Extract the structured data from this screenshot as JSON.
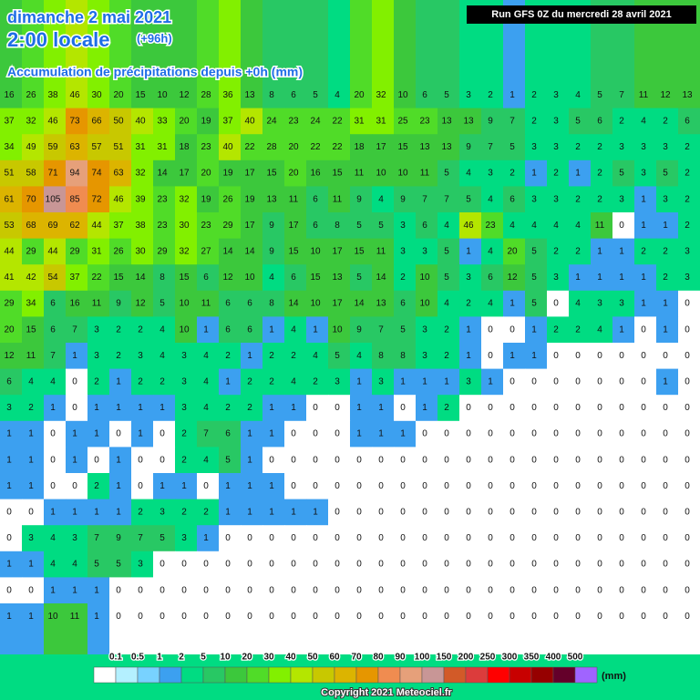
{
  "header": {
    "date": "dimanche 2 mai 2021",
    "time": "2:00 locale",
    "lead": "(+96h)",
    "subtitle": "Accumulation de précipitations depuis +0h (mm)",
    "run": "Run GFS 0Z du mercredi 28 avril 2021"
  },
  "legend": {
    "labels": [
      0.1,
      0.5,
      1,
      2,
      5,
      10,
      20,
      30,
      40,
      50,
      60,
      70,
      80,
      90,
      100,
      150,
      200,
      250,
      300,
      350,
      400,
      500
    ],
    "colors": [
      "#ffffff",
      "#b4f0ff",
      "#78d2ff",
      "#3ca0f0",
      "#00dc82",
      "#28c864",
      "#3cc83c",
      "#50dc28",
      "#82f000",
      "#b4e600",
      "#c8c800",
      "#dcb400",
      "#e69600",
      "#f08c50",
      "#e6a07a",
      "#c89696",
      "#d25a28",
      "#dc3c3c",
      "#ff0000",
      "#c80000",
      "#960000",
      "#64002a",
      "#a064ff"
    ],
    "unit": "(mm)"
  },
  "copyright": "Copyright 2021 Meteociel.fr",
  "grid": {
    "rows": [
      [
        16,
        26,
        38,
        46,
        30,
        20,
        15,
        10,
        12,
        28,
        36,
        13,
        8,
        6,
        5,
        4,
        20,
        32,
        10,
        6,
        5,
        3,
        2,
        1,
        2,
        3,
        4,
        5,
        7,
        11,
        12,
        13
      ],
      [
        37,
        32,
        46,
        73,
        66,
        50,
        40,
        33,
        20,
        19,
        37,
        40,
        24,
        23,
        24,
        22,
        31,
        31,
        25,
        23,
        13,
        13,
        9,
        7,
        2,
        3,
        5,
        6,
        2,
        4,
        2,
        6
      ],
      [
        34,
        49,
        59,
        63,
        57,
        51,
        31,
        31,
        18,
        23,
        40,
        22,
        28,
        20,
        22,
        22,
        18,
        17,
        15,
        13,
        13,
        9,
        7,
        5,
        3,
        3,
        2,
        2,
        3,
        3,
        3,
        2
      ],
      [
        51,
        58,
        71,
        94,
        74,
        63,
        32,
        14,
        17,
        20,
        19,
        17,
        15,
        20,
        16,
        15,
        11,
        10,
        10,
        11,
        5,
        4,
        3,
        2,
        1,
        2,
        1,
        2,
        5,
        3,
        5,
        2
      ],
      [
        61,
        70,
        105,
        85,
        72,
        46,
        39,
        23,
        32,
        19,
        26,
        19,
        13,
        11,
        6,
        11,
        9,
        4,
        9,
        7,
        7,
        5,
        4,
        6,
        3,
        3,
        2,
        2,
        3,
        1,
        3,
        2
      ],
      [
        53,
        68,
        69,
        62,
        44,
        37,
        38,
        23,
        30,
        23,
        29,
        17,
        9,
        17,
        6,
        8,
        5,
        5,
        3,
        6,
        4,
        46,
        23,
        4,
        4,
        4,
        4,
        11,
        0,
        1,
        1,
        2
      ],
      [
        44,
        29,
        44,
        29,
        31,
        26,
        30,
        29,
        32,
        27,
        14,
        14,
        9,
        15,
        10,
        17,
        15,
        11,
        3,
        3,
        5,
        1,
        4,
        20,
        5,
        2,
        2,
        1,
        1,
        2,
        2,
        3
      ],
      [
        41,
        42,
        54,
        37,
        22,
        15,
        14,
        8,
        15,
        6,
        12,
        10,
        4,
        6,
        15,
        13,
        5,
        14,
        2,
        10,
        5,
        3,
        6,
        12,
        5,
        3,
        1,
        1,
        1,
        1,
        2,
        3
      ],
      [
        29,
        34,
        6,
        16,
        11,
        9,
        12,
        5,
        10,
        11,
        6,
        6,
        8,
        14,
        10,
        17,
        14,
        13,
        6,
        10,
        4,
        2,
        4,
        1,
        5,
        0,
        4,
        3,
        3,
        1,
        1,
        0
      ],
      [
        20,
        15,
        6,
        7,
        3,
        2,
        2,
        4,
        10,
        1,
        6,
        6,
        1,
        4,
        1,
        10,
        9,
        7,
        5,
        3,
        2,
        1,
        0,
        0,
        1,
        2,
        2,
        4,
        1,
        0,
        1,
        0
      ],
      [
        12,
        11,
        7,
        1,
        3,
        2,
        3,
        4,
        3,
        4,
        2,
        1,
        2,
        2,
        4,
        5,
        4,
        8,
        8,
        3,
        2,
        1,
        0,
        1,
        1,
        0,
        0,
        0,
        0,
        0,
        0,
        0
      ],
      [
        6,
        4,
        4,
        0,
        2,
        1,
        2,
        2,
        3,
        4,
        1,
        2,
        2,
        4,
        2,
        3,
        1,
        3,
        1,
        1,
        1,
        3,
        1,
        0,
        0,
        0,
        0,
        0,
        0,
        0,
        1,
        0
      ],
      [
        3,
        2,
        1,
        0,
        1,
        1,
        1,
        1,
        3,
        4,
        2,
        2,
        1,
        1,
        0,
        0,
        1,
        1,
        0,
        1,
        2,
        0,
        0,
        0,
        0,
        0,
        0,
        0,
        0,
        0,
        0,
        0
      ],
      [
        1,
        1,
        0,
        1,
        1,
        0,
        1,
        0,
        2,
        7,
        6,
        1,
        1,
        0,
        0,
        0,
        1,
        1,
        1,
        0,
        0,
        0,
        0,
        0,
        0,
        0,
        0,
        0,
        0,
        0,
        0,
        0
      ],
      [
        1,
        1,
        0,
        1,
        0,
        1,
        0,
        0,
        2,
        4,
        5,
        1,
        0,
        0,
        0,
        0,
        0,
        0,
        0,
        0,
        0,
        0,
        0,
        0,
        0,
        0,
        0,
        0,
        0,
        0,
        0,
        0
      ],
      [
        1,
        1,
        0,
        0,
        2,
        1,
        0,
        1,
        1,
        0,
        1,
        1,
        1,
        0,
        0,
        0,
        0,
        0,
        0,
        0,
        0,
        0,
        0,
        0,
        0,
        0,
        0,
        0,
        0,
        0,
        0,
        0
      ],
      [
        0,
        0,
        1,
        1,
        1,
        1,
        2,
        3,
        2,
        2,
        1,
        1,
        1,
        1,
        1,
        0,
        0,
        0,
        0,
        0,
        0,
        0,
        0,
        0,
        0,
        0,
        0,
        0,
        0,
        0,
        0,
        0
      ],
      [
        0,
        3,
        4,
        3,
        7,
        9,
        7,
        5,
        3,
        1,
        0,
        0,
        0,
        0,
        0,
        0,
        0,
        0,
        0,
        0,
        0,
        0,
        0,
        0,
        0,
        0,
        0,
        0,
        0,
        0,
        0,
        0
      ],
      [
        1,
        1,
        4,
        4,
        5,
        5,
        3,
        0,
        0,
        0,
        0,
        0,
        0,
        0,
        0,
        0,
        0,
        0,
        0,
        0,
        0,
        0,
        0,
        0,
        0,
        0,
        0,
        0,
        0,
        0,
        0,
        0
      ],
      [
        0,
        0,
        1,
        1,
        1,
        0,
        0,
        0,
        0,
        0,
        0,
        0,
        0,
        0,
        0,
        0,
        0,
        0,
        0,
        0,
        0,
        0,
        0,
        0,
        0,
        0,
        0,
        0,
        0,
        0,
        0,
        0
      ],
      [
        1,
        1,
        10,
        11,
        1,
        0,
        0,
        0,
        0,
        0,
        0,
        0,
        0,
        0,
        0,
        0,
        0,
        0,
        0,
        0,
        0,
        0,
        0,
        0,
        0,
        0,
        0,
        0,
        0,
        0,
        0,
        0
      ]
    ]
  }
}
